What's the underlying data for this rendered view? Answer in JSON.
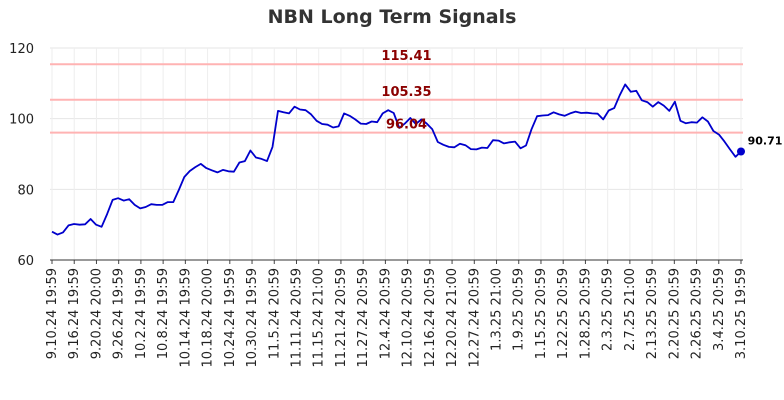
{
  "chart_data": {
    "type": "line",
    "title": "NBN Long Term Signals",
    "xlabel": "",
    "ylabel": "",
    "ylim": [
      60,
      120
    ],
    "yticks": [
      60,
      80,
      100,
      120
    ],
    "grid": true,
    "x_tick_labels": [
      "9.10.24 19:59",
      "9.16.24 19:59",
      "9.20.24 20:00",
      "9.26.24 19:59",
      "10.2.24 19:59",
      "10.8.24 19:59",
      "10.14.24 19:59",
      "10.18.24 20:00",
      "10.24.24 19:59",
      "10.30.24 19:59",
      "11.5.24 20:59",
      "11.11.24 20:59",
      "11.15.24 21:00",
      "11.21.24 20:59",
      "11.27.24 20:59",
      "12.4.24 20:59",
      "12.10.24 20:59",
      "12.16.24 20:59",
      "12.20.24 21:00",
      "12.27.24 20:59",
      "1.3.25 21:00",
      "1.9.25 20:59",
      "1.15.25 20:59",
      "1.22.25 20:59",
      "1.28.25 20:59",
      "2.3.25 20:59",
      "2.7.25 21:00",
      "2.13.25 20:59",
      "2.20.25 20:59",
      "2.26.25 20:59",
      "3.4.25 20:59",
      "3.10.25 19:59"
    ],
    "horizontal_lines": [
      {
        "value": 115.41,
        "label": "115.41",
        "color": "#ffb3b3"
      },
      {
        "value": 105.35,
        "label": "105.35",
        "color": "#ffb3b3"
      },
      {
        "value": 96.04,
        "label": "96.04",
        "color": "#ffb3b3"
      }
    ],
    "series": [
      {
        "color": "#0000cc",
        "values": [
          68.0,
          67.2,
          67.8,
          69.8,
          70.2,
          70.0,
          70.1,
          71.6,
          70.0,
          69.4,
          73.0,
          77.0,
          77.5,
          76.8,
          77.2,
          75.6,
          74.6,
          75.0,
          75.8,
          75.6,
          75.6,
          76.4,
          76.4,
          79.8,
          83.5,
          85.2,
          86.3,
          87.2,
          86.0,
          85.4,
          84.8,
          85.5,
          85.1,
          85.0,
          87.6,
          88.0,
          91.0,
          89.0,
          88.6,
          88.0,
          92.0,
          102.2,
          101.8,
          101.5,
          103.4,
          102.6,
          102.4,
          101.2,
          99.4,
          98.5,
          98.3,
          97.5,
          97.8,
          101.5,
          100.8,
          99.8,
          98.6,
          98.5,
          99.2,
          99.0,
          101.5,
          102.4,
          101.6,
          97.4,
          98.6,
          100.2,
          98.5,
          99.8,
          98.6,
          97.0,
          93.4,
          92.6,
          92.0,
          91.9,
          92.9,
          92.5,
          91.4,
          91.3,
          91.8,
          91.7,
          93.9,
          93.8,
          93.0,
          93.3,
          93.5,
          91.6,
          92.4,
          97.0,
          100.7,
          100.9,
          101.0,
          101.8,
          101.2,
          100.8,
          101.5,
          102.0,
          101.6,
          101.7,
          101.5,
          101.4,
          99.8,
          102.3,
          103.0,
          106.6,
          109.7,
          107.6,
          107.9,
          105.2,
          104.7,
          103.4,
          104.7,
          103.7,
          102.2,
          104.8,
          99.4,
          98.7,
          99.0,
          98.9,
          100.4,
          99.2,
          96.5,
          95.5,
          93.5,
          91.3,
          89.2,
          90.71
        ]
      }
    ],
    "last_value_label": "90.71"
  }
}
